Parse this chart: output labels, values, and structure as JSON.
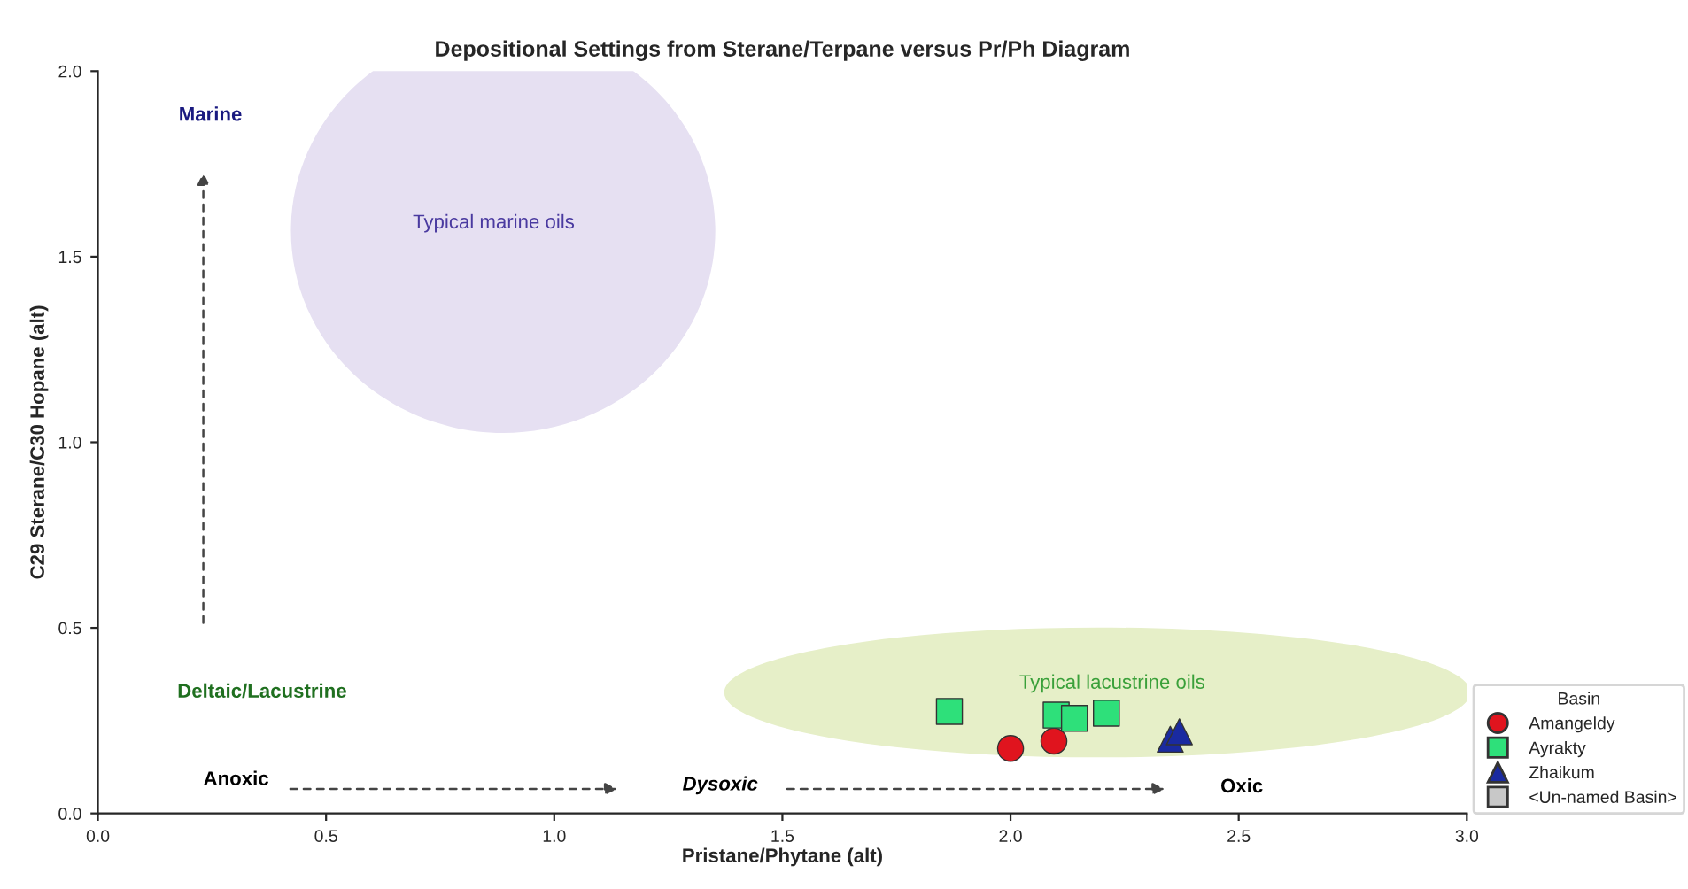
{
  "chart_data": {
    "type": "scatter",
    "title": "Depositional Settings from Sterane/Terpane versus Pr/Ph Diagram",
    "xlabel": "Pristane/Phytane (alt)",
    "ylabel": "C29 Sterane/C30 Hopane (alt)",
    "legend_title": "Basin",
    "xlim": [
      0,
      3.0
    ],
    "xticks": [
      {
        "value": 0,
        "label": "0.0"
      },
      0.5,
      {
        "value": 1,
        "label": "1.0"
      },
      1.5,
      {
        "value": 2,
        "label": "2.0"
      },
      2.5,
      {
        "value": 3,
        "label": "3.0"
      }
    ],
    "ylim": [
      0,
      2.0
    ],
    "yticks": [
      {
        "value": 0,
        "label": "0.0"
      },
      0.5,
      {
        "value": 1,
        "label": "1.0"
      },
      1.5,
      {
        "value": 2,
        "label": "2.0"
      }
    ],
    "grid": false,
    "legend": "bottom right",
    "series": [
      {
        "name": "Amangeldy",
        "color": "#e0141e",
        "marker": "circle",
        "x": [
          2.0,
          2.095
        ],
        "values": [
          0.175,
          0.195
        ]
      },
      {
        "name": "Ayrakty",
        "color": "#2ee07a",
        "marker": "square",
        "x": [
          1.866,
          2.1,
          2.14,
          2.21
        ],
        "values": [
          0.275,
          0.265,
          0.256,
          0.27
        ]
      },
      {
        "name": "Zhaikum",
        "color": "#1a2aa0",
        "marker": "triangle",
        "x": [
          2.35,
          2.37
        ],
        "values": [
          0.2,
          0.22
        ]
      },
      {
        "name": "<Un-named Basin>",
        "color": "#c8c8c8",
        "marker": "square"
      }
    ],
    "annotations": [
      "Marine",
      "Deltaic/Lacustrine",
      "Anoxic",
      "Dysoxic",
      "Oxic",
      "Typical marine oils",
      "Typical lacustrine oils"
    ]
  }
}
